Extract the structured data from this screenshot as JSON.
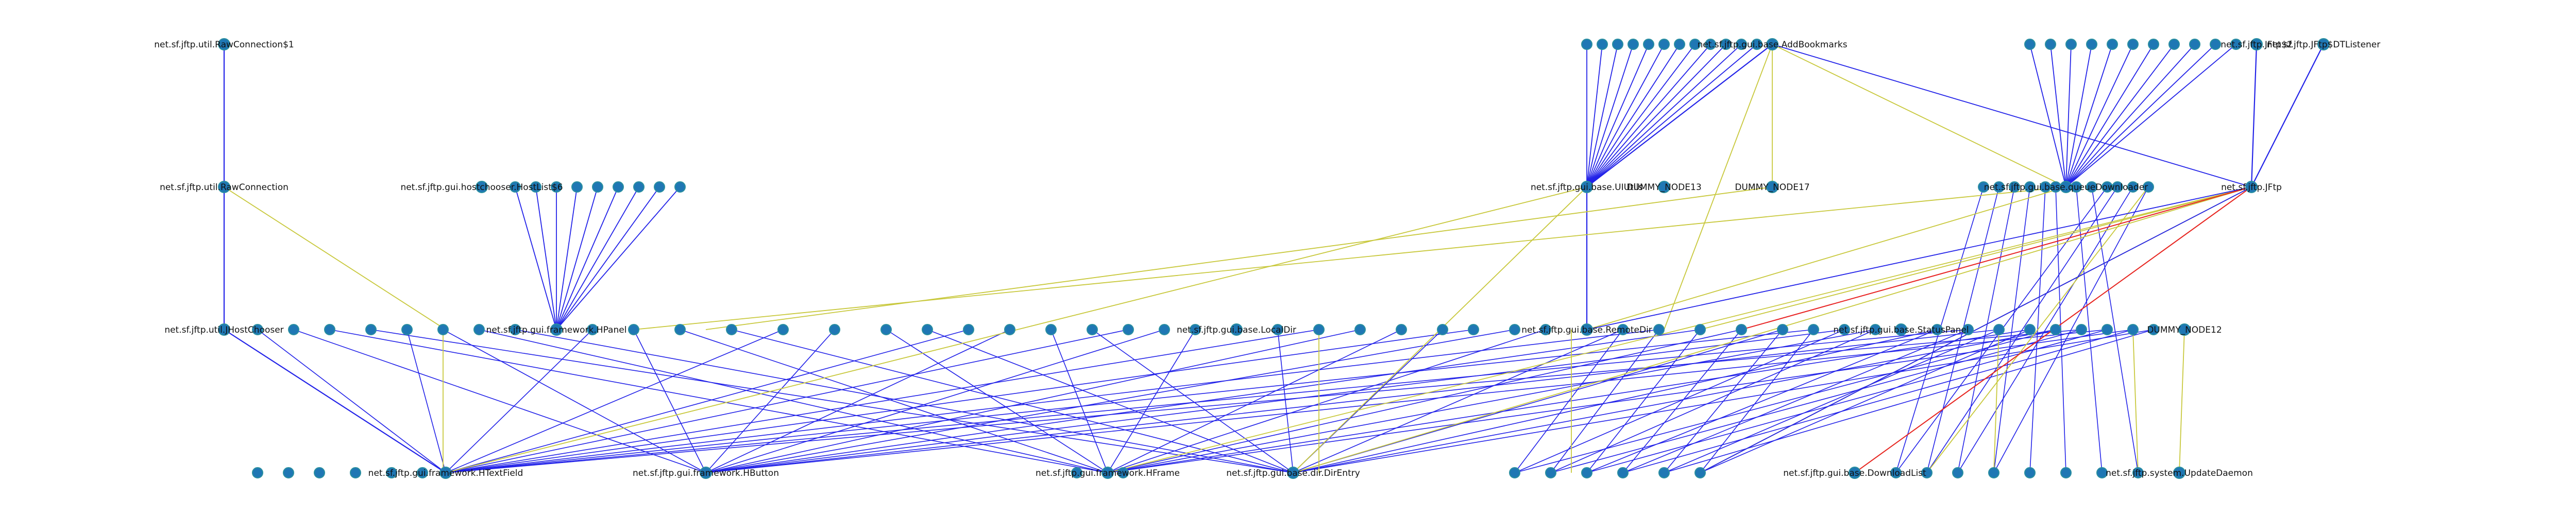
{
  "colors": {
    "node": "#1f77b4",
    "edge_inherit": "#2222e8",
    "edge_use": "#c8c83c",
    "edge_special": "#e82222",
    "label": "#111111"
  },
  "chart_data": {
    "type": "graph",
    "layout": "layered, top-to-bottom",
    "levels": [
      {
        "level": 0,
        "nodes": [
          {
            "id": "n0a",
            "label": "net.sf.jftp.util.RawConnection$1"
          },
          {
            "id": "n0b",
            "label": "net.sf.jftp.gui.base.AddBookmarks"
          },
          {
            "id": "n0c",
            "label": "net.sf.jftp.JFtp$2"
          },
          {
            "id": "n0d",
            "label": "net.sf.jftp.JFtp$DTListener"
          }
        ]
      },
      {
        "level": 1,
        "nodes": [
          {
            "id": "n1a",
            "label": "net.sf.jftp.util.RawConnection"
          },
          {
            "id": "n1b",
            "label": "net.sf.jftp.gui.hostchooser.HostList$6"
          },
          {
            "id": "n1c",
            "label": "net.sf.jftp.gui.base.UIUtils"
          },
          {
            "id": "n1d",
            "label": "DUMMY_NODE13"
          },
          {
            "id": "n1e",
            "label": "DUMMY_NODE17"
          },
          {
            "id": "n1f",
            "label": "net.sf.jftp.gui.base.queueDownloader"
          },
          {
            "id": "n1g",
            "label": "net.sf.jftp.JFtp"
          }
        ]
      },
      {
        "level": 2,
        "nodes": [
          {
            "id": "n2a",
            "label": "net.sf.jftp.util.JHostChooser"
          },
          {
            "id": "n2b",
            "label": "net.sf.jftp.gui.framework.HPanel"
          },
          {
            "id": "n2c",
            "label": "net.sf.jftp.gui.base.LocalDir"
          },
          {
            "id": "n2d",
            "label": "net.sf.jftp.gui.base.RemoteDir"
          },
          {
            "id": "n2e",
            "label": "net.sf.jftp.gui.base.StatusPanel"
          },
          {
            "id": "n2f",
            "label": "DUMMY_NODE12"
          }
        ]
      },
      {
        "level": 3,
        "nodes": [
          {
            "id": "n3a",
            "label": "net.sf.jftp.gui.framework.HTextField"
          },
          {
            "id": "n3b",
            "label": "net.sf.jftp.gui.framework.HButton"
          },
          {
            "id": "n3c",
            "label": "net.sf.jftp.gui.framework.HFrame"
          },
          {
            "id": "n3d",
            "label": "net.sf.jftp.gui.base.dir.DirEntry"
          },
          {
            "id": "n3e",
            "label": "net.sf.jftp.gui.base.DownloadList"
          },
          {
            "id": "n3f",
            "label": "net.sf.jftp.system.UpdateDaemon"
          }
        ]
      }
    ],
    "edge_kinds": [
      "inherits",
      "uses",
      "special"
    ]
  }
}
